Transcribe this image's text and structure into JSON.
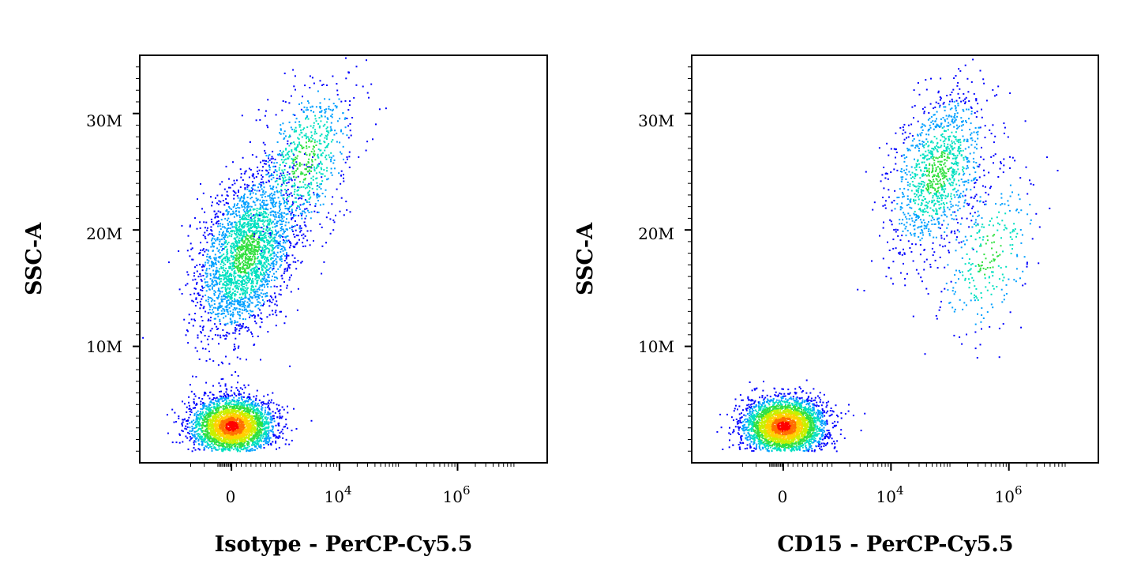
{
  "chart_data": [
    {
      "type": "scatter",
      "xlabel": "Isotype - PerCP-Cy5.5",
      "ylabel": "SSC-A",
      "x_scale": "biexponential",
      "y_ticks": [
        {
          "value": 10,
          "label": "10M"
        },
        {
          "value": 20,
          "label": "20M"
        },
        {
          "value": 30,
          "label": "30M"
        }
      ],
      "x_ticks": [
        {
          "value": 0,
          "label": "0"
        },
        {
          "value": 10000,
          "base": "10",
          "exp": "4"
        },
        {
          "value": 1000000,
          "base": "10",
          "exp": "6"
        }
      ],
      "ylim": [
        0,
        35
      ],
      "color_scale": "density (blue-green-yellow-red)",
      "populations": [
        {
          "name": "",
          "x_center": 0,
          "y_center": 3.2,
          "events": 3000
        },
        {
          "name": "",
          "x_center": 300,
          "y_center": 18,
          "events": 2600
        },
        {
          "name": "",
          "x_center": 2500,
          "y_center": 26,
          "events": 700
        }
      ]
    },
    {
      "type": "scatter",
      "xlabel": "CD15 - PerCP-Cy5.5",
      "ylabel": "SSC-A",
      "x_scale": "biexponential",
      "y_ticks": [
        {
          "value": 10,
          "label": "10M"
        },
        {
          "value": 20,
          "label": "20M"
        },
        {
          "value": 30,
          "label": "30M"
        }
      ],
      "x_ticks": [
        {
          "value": 0,
          "label": "0"
        },
        {
          "value": 10000,
          "base": "10",
          "exp": "4"
        },
        {
          "value": 1000000,
          "base": "10",
          "exp": "6"
        }
      ],
      "ylim": [
        0,
        35
      ],
      "color_scale": "density (blue-green-yellow-red)",
      "populations": [
        {
          "name": "",
          "x_center": 0,
          "y_center": 3.2,
          "events": 3200
        },
        {
          "name": "",
          "x_center": 60000,
          "y_center": 25,
          "events": 1200
        },
        {
          "name": "",
          "x_center": 450000,
          "y_center": 18,
          "events": 300
        }
      ]
    }
  ]
}
